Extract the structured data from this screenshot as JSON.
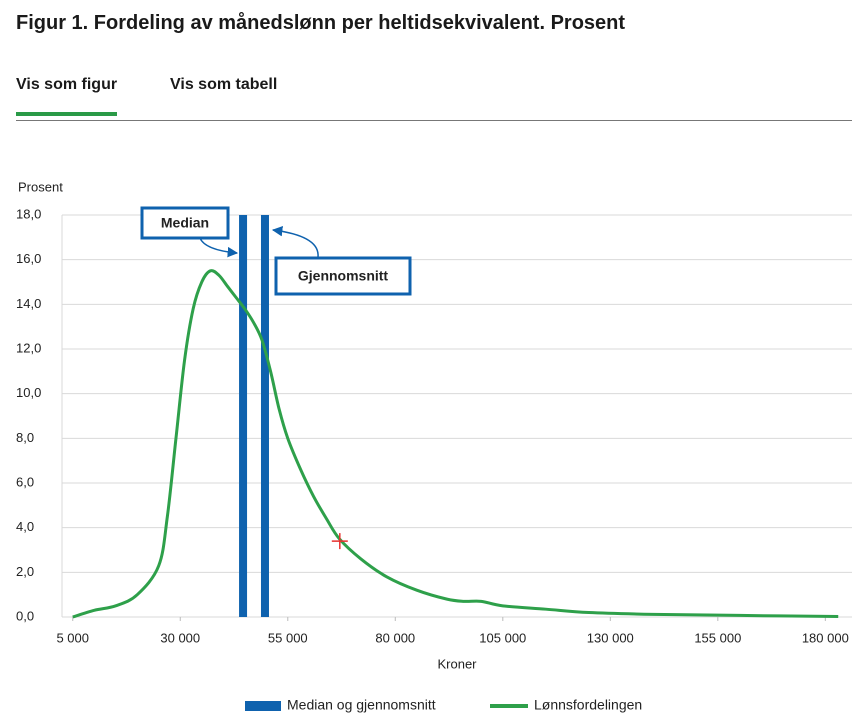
{
  "header": {
    "title": "Figur 1. Fordeling av månedslønn per heltidsekvivalent. Prosent"
  },
  "tabs": [
    {
      "label": "Vis som figur",
      "active": true
    },
    {
      "label": "Vis som tabell",
      "active": false
    }
  ],
  "chart_data": {
    "type": "line",
    "y_label": "Prosent",
    "x_label": "Kroner",
    "xlim": [
      2500,
      186200
    ],
    "ylim": [
      0,
      18
    ],
    "xticks": [
      {
        "value": 5000,
        "label": "5 000"
      },
      {
        "value": 30000,
        "label": "30 000"
      },
      {
        "value": 55000,
        "label": "55 000"
      },
      {
        "value": 80000,
        "label": "80 000"
      },
      {
        "value": 105000,
        "label": "105 000"
      },
      {
        "value": 130000,
        "label": "130 000"
      },
      {
        "value": 155000,
        "label": "155 000"
      },
      {
        "value": 180000,
        "label": "180 000"
      }
    ],
    "yticks": [
      {
        "value": 0,
        "label": "0,0"
      },
      {
        "value": 2,
        "label": "2,0"
      },
      {
        "value": 4,
        "label": "4,0"
      },
      {
        "value": 6,
        "label": "6,0"
      },
      {
        "value": 8,
        "label": "8,0"
      },
      {
        "value": 10,
        "label": "10,0"
      },
      {
        "value": 12,
        "label": "12,0"
      },
      {
        "value": 14,
        "label": "14,0"
      },
      {
        "value": 16,
        "label": "16,0"
      },
      {
        "value": 18,
        "label": "18,0"
      }
    ],
    "grid": true,
    "reference_lines": {
      "name": "Median og gjennomsnitt",
      "color": "#0f62ae",
      "x": [
        44600,
        49700
      ],
      "annotations": [
        "Median",
        "Gjennomsnitt"
      ]
    },
    "series": [
      {
        "name": "Lønnsfordelingen",
        "color": "#2ea04a",
        "x": [
          5000,
          10000,
          15000,
          20000,
          25000,
          27000,
          29000,
          31000,
          33000,
          35000,
          37000,
          39000,
          41000,
          43000,
          45000,
          47000,
          49000,
          51000,
          53000,
          55000,
          58000,
          61000,
          64000,
          67000,
          72000,
          78000,
          85000,
          92000,
          96000,
          100000,
          105000,
          115000,
          125000,
          140000,
          160000,
          183000
        ],
        "values": [
          0.0,
          0.3,
          0.5,
          1.0,
          2.3,
          4.5,
          8.0,
          11.5,
          13.8,
          15.0,
          15.5,
          15.3,
          14.8,
          14.3,
          13.8,
          13.2,
          12.4,
          11.0,
          9.3,
          8.0,
          6.6,
          5.4,
          4.4,
          3.5,
          2.6,
          1.8,
          1.2,
          0.8,
          0.7,
          0.7,
          0.5,
          0.35,
          0.2,
          0.12,
          0.07,
          0.02
        ]
      }
    ],
    "highlight": {
      "x": 67100,
      "y": 3.4,
      "color": "#e8312f"
    }
  }
}
